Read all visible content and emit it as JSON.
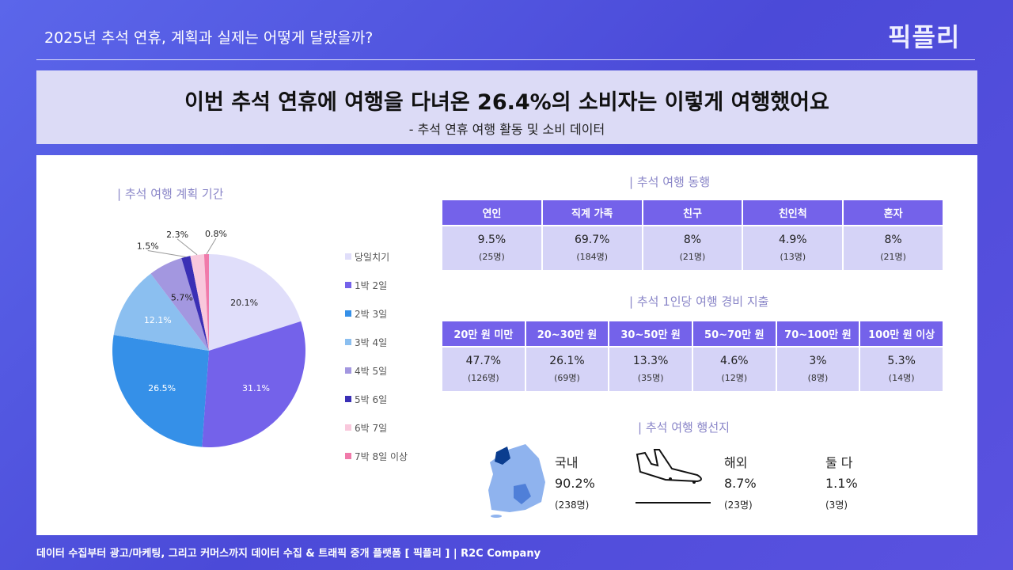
{
  "header": {
    "title": "2025년 추석 연휴, 계획과 실제는 어떻게 달랐을까?",
    "logo": "픽플리"
  },
  "banner": {
    "title": "이번 추석 연휴에 여행을 다녀온 26.4%의 소비자는 이렇게 여행했어요",
    "subtitle": "- 추석 연휴 여행 활동 및 소비 데이터"
  },
  "chart_data": {
    "type": "pie",
    "title": "| 추석 여행 계획 기간",
    "categories": [
      "당일치기",
      "1박 2일",
      "2박 3일",
      "3박 4일",
      "4박 5일",
      "5박 6일",
      "6박 7일",
      "7박 8일 이상"
    ],
    "values": [
      20.1,
      31.1,
      26.5,
      12.1,
      5.7,
      1.5,
      2.3,
      0.8
    ],
    "labels": [
      "20.1%",
      "31.1%",
      "26.5%",
      "12.1%",
      "5.7%",
      "1.5%",
      "2.3%",
      "0.8%"
    ],
    "colors": [
      "#e0defa",
      "#7462ea",
      "#3590e8",
      "#8bbff0",
      "#a397e0",
      "#3a2fb5",
      "#f9c8dc",
      "#f07aaa"
    ],
    "legend": "right"
  },
  "companion": {
    "title": "| 추석 여행 동행",
    "headers": [
      "연인",
      "직계 가족",
      "친구",
      "친인척",
      "혼자"
    ],
    "pct": [
      "9.5%",
      "69.7%",
      "8%",
      "4.9%",
      "8%"
    ],
    "count": [
      "(25명)",
      "(184명)",
      "(21명)",
      "(13명)",
      "(21명)"
    ]
  },
  "spend": {
    "title": "| 추석 1인당 여행 경비 지출",
    "headers": [
      "20만 원 미만",
      "20~30만 원",
      "30~50만 원",
      "50~70만 원",
      "70~100만 원",
      "100만 원 이상"
    ],
    "pct": [
      "47.7%",
      "26.1%",
      "13.3%",
      "4.6%",
      "3%",
      "5.3%"
    ],
    "count": [
      "(126명)",
      "(69명)",
      "(35명)",
      "(12명)",
      "(8명)",
      "(14명)"
    ]
  },
  "destination": {
    "title": "| 추석 여행 행선지",
    "items": [
      {
        "label": "국내",
        "pct": "90.2%",
        "count": "(238명)"
      },
      {
        "label": "해외",
        "pct": "8.7%",
        "count": "(23명)"
      },
      {
        "label": "둘 다",
        "pct": "1.1%",
        "count": "(3명)"
      }
    ]
  },
  "footer": "데이터 수집부터 광고/마케팅, 그리고 커머스까지 데이터 수집 & 트래픽 중개 플랫폼 [ 픽플리 ]  |  R2C Company"
}
